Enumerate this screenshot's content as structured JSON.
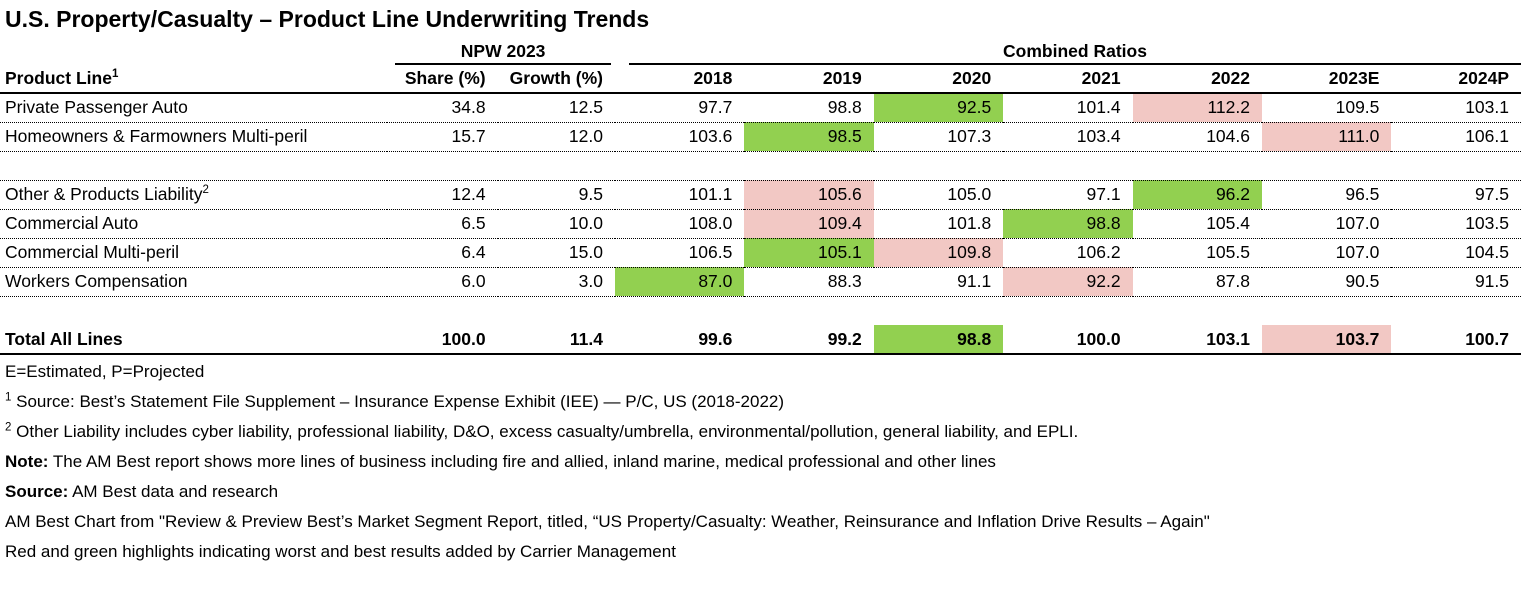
{
  "title": "U.S. Property/Casualty – Product Line Underwriting Trends",
  "chart_data": {
    "type": "table",
    "title": "U.S. Property/Casualty – Product Line Underwriting Trends",
    "highlight_colors": {
      "best": "#92d050",
      "worst": "#f2c8c4"
    },
    "highlight_meaning": {
      "best": "green = best result",
      "worst": "red = worst result"
    },
    "column_groups": [
      {
        "label": "NPW 2023",
        "columns": [
          "Share (%)",
          "Growth (%)"
        ]
      },
      {
        "label": "Combined Ratios",
        "columns": [
          "2018",
          "2019",
          "2020",
          "2021",
          "2022",
          "2023E",
          "2024P"
        ]
      }
    ],
    "columns": [
      {
        "label": "Product Line",
        "sup": "1"
      },
      {
        "label": "Share (%)"
      },
      {
        "label": "Growth (%)"
      },
      {
        "label": "2018"
      },
      {
        "label": "2019"
      },
      {
        "label": "2020"
      },
      {
        "label": "2021"
      },
      {
        "label": "2022"
      },
      {
        "label": "2023E"
      },
      {
        "label": "2024P"
      }
    ],
    "rows": [
      {
        "label": "Private Passenger Auto",
        "values": [
          "34.8",
          "12.5",
          "97.7",
          "98.8",
          "92.5",
          "101.4",
          "112.2",
          "109.5",
          "103.1"
        ],
        "highlights": {
          "4": "best",
          "6": "worst"
        }
      },
      {
        "label": "Homeowners & Farmowners Multi-peril",
        "values": [
          "15.7",
          "12.0",
          "103.6",
          "98.5",
          "107.3",
          "103.4",
          "104.6",
          "111.0",
          "106.1"
        ],
        "highlights": {
          "3": "best",
          "7": "worst"
        }
      },
      {
        "spacer": true,
        "dotted": true
      },
      {
        "label": "Other & Products Liability",
        "sup": "2",
        "values": [
          "12.4",
          "9.5",
          "101.1",
          "105.6",
          "105.0",
          "97.1",
          "96.2",
          "96.5",
          "97.5"
        ],
        "highlights": {
          "3": "worst",
          "6": "best"
        }
      },
      {
        "label": "Commercial Auto",
        "values": [
          "6.5",
          "10.0",
          "108.0",
          "109.4",
          "101.8",
          "98.8",
          "105.4",
          "107.0",
          "103.5"
        ],
        "highlights": {
          "3": "worst",
          "5": "best"
        }
      },
      {
        "label": "Commercial Multi-peril",
        "values": [
          "6.4",
          "15.0",
          "106.5",
          "105.1",
          "109.8",
          "106.2",
          "105.5",
          "107.0",
          "104.5"
        ],
        "highlights": {
          "3": "best",
          "4": "worst"
        }
      },
      {
        "label": "Workers Compensation",
        "values": [
          "6.0",
          "3.0",
          "87.0",
          "88.3",
          "91.1",
          "92.2",
          "87.8",
          "90.5",
          "91.5"
        ],
        "highlights": {
          "2": "best",
          "5": "worst"
        }
      },
      {
        "spacer": true,
        "dotted": false
      },
      {
        "label": "Total All Lines",
        "total": true,
        "values": [
          "100.0",
          "11.4",
          "99.6",
          "99.2",
          "98.8",
          "100.0",
          "103.1",
          "103.7",
          "100.7"
        ],
        "highlights": {
          "4": "best",
          "7": "worst"
        }
      }
    ]
  },
  "footnotes": [
    {
      "text": "E=Estimated, P=Projected"
    },
    {
      "sup": "1",
      "text": " Source: Best’s Statement File Supplement – Insurance Expense Exhibit (IEE) — P/C, US (2018-2022)"
    },
    {
      "sup": "2",
      "text": " Other Liability includes cyber liability, professional liability, D&O, excess casualty/umbrella, environmental/pollution, general liability, and EPLI."
    },
    {
      "bold": "Note:",
      "text": " The AM Best report shows more lines of business including fire and allied, inland marine, medical professional and other lines"
    },
    {
      "bold": "Source:",
      "text": " AM Best data and research"
    },
    {
      "text": "AM Best Chart from  \"Review & Preview Best’s Market Segment Report, titled, “US Property/Casualty: Weather, Reinsurance and Inflation Drive Results – Again\""
    },
    {
      "text": "Red and green highlights indicating worst and best results added by Carrier Management"
    }
  ]
}
